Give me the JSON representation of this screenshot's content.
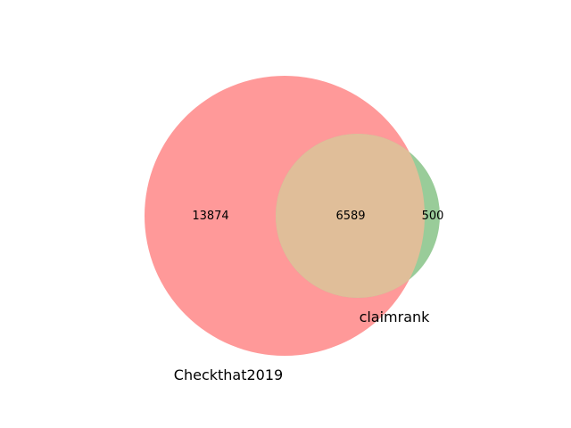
{
  "venn": {
    "sets": [
      {
        "name": "Checkthat2019",
        "color": "#ff9999"
      },
      {
        "name": "claimrank",
        "color": "#99cc99"
      }
    ],
    "overlap_color": "#e0be99",
    "regions": {
      "only_a": "13874",
      "intersection": "6589",
      "only_b": "500"
    }
  }
}
